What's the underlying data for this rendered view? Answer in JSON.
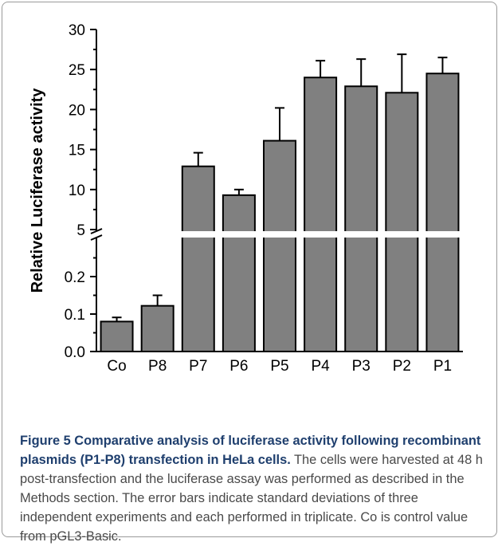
{
  "chart_data": {
    "type": "bar",
    "categories": [
      "Co",
      "P8",
      "P7",
      "P6",
      "P5",
      "P4",
      "P3",
      "P2",
      "P1"
    ],
    "values": [
      0.08,
      0.122,
      12.9,
      9.3,
      16.1,
      24.0,
      22.9,
      22.1,
      24.5
    ],
    "errors": [
      0.011,
      0.028,
      1.7,
      0.7,
      4.1,
      2.1,
      3.4,
      4.8,
      2.0
    ],
    "ylabel": "Relative Luciferase activity",
    "xlabel": "",
    "axis_break": true,
    "lower_segment": {
      "ylim": [
        0.0,
        0.3
      ],
      "ticks": [
        "0.0",
        "0.1",
        "0.2"
      ]
    },
    "upper_segment": {
      "ylim": [
        5,
        30
      ],
      "ticks": [
        "5",
        "10",
        "15",
        "20",
        "25",
        "30"
      ]
    },
    "bar_color": "#808080",
    "grid": false
  },
  "caption": {
    "title": "Figure 5 Comparative analysis of luciferase activity following recombinant plasmids (P1-P8) transfection in HeLa cells.",
    "body": " The cells were harvested at 48 h post-transfection and the luciferase assay was performed as described in the Methods section. The error bars indicate standard deviations of three independent experiments and each performed in triplicate. Co is control value from pGL3-Basic."
  }
}
